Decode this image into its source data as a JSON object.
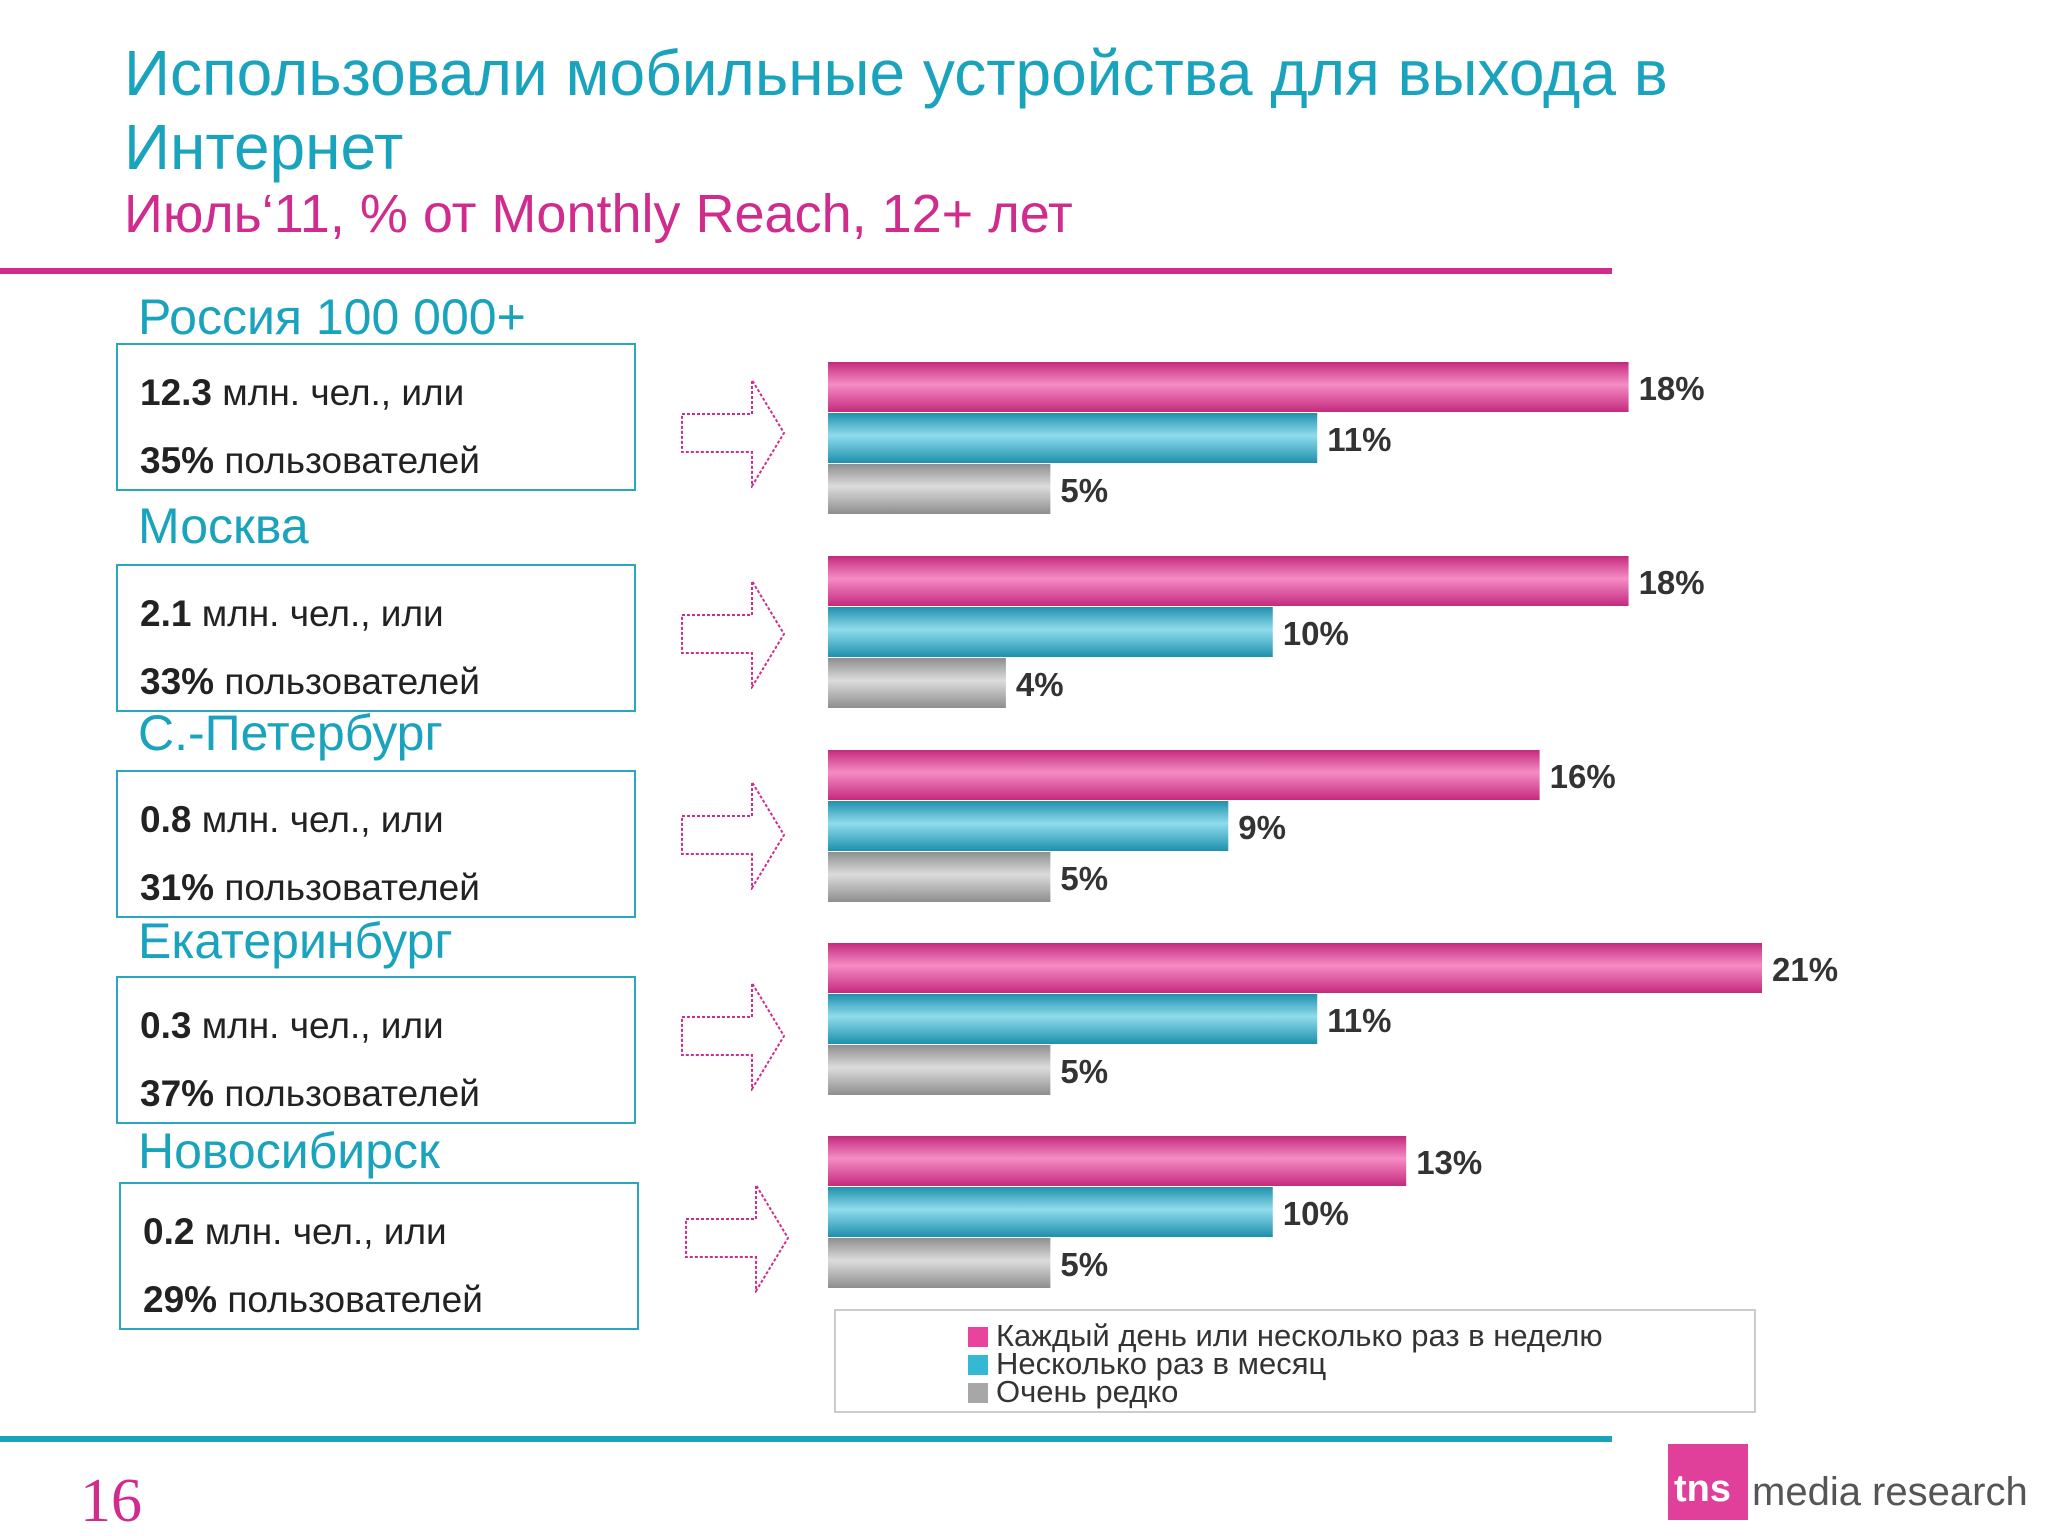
{
  "title": "Использовали мобильные устройства для выхода в Интернет",
  "subtitle": "Июль‘11, % от Monthly Reach, 12+ лет",
  "regions": [
    {
      "name": "Россия 100 000+",
      "count": "12.3",
      "count_suffix": "млн. чел., или",
      "share": "35%",
      "share_suffix": "пользователей"
    },
    {
      "name": "Москва",
      "count": "2.1",
      "count_suffix": "млн. чел., или",
      "share": "33%",
      "share_suffix": "пользователей"
    },
    {
      "name": "С.-Петербург",
      "count": "0.8",
      "count_suffix": "млн. чел., или",
      "share": "31%",
      "share_suffix": "пользователей"
    },
    {
      "name": "Екатеринбург",
      "count": "0.3",
      "count_suffix": "млн. чел., или",
      "share": "37%",
      "share_suffix": "пользователей"
    },
    {
      "name": "Новосибирск",
      "count": "0.2",
      "count_suffix": "млн. чел., или",
      "share": "29%",
      "share_suffix": "пользователей"
    }
  ],
  "chart_data": {
    "type": "bar",
    "orientation": "horizontal",
    "categories": [
      "Россия 100 000+",
      "Москва",
      "С.-Петербург",
      "Екатеринбург",
      "Новосибирск"
    ],
    "series": [
      {
        "name": "Каждый день или несколько раз в неделю",
        "values": [
          18,
          18,
          16,
          21,
          13
        ],
        "color": "#e8449e"
      },
      {
        "name": "Несколько раз в месяц",
        "values": [
          11,
          10,
          9,
          11,
          10
        ],
        "color": "#35b8d3"
      },
      {
        "name": "Очень редко",
        "values": [
          5,
          4,
          5,
          5,
          5
        ],
        "color": "#a7a7a7"
      }
    ],
    "data_labels": [
      [
        "18%",
        "11%",
        "5%"
      ],
      [
        "18%",
        "10%",
        "4%"
      ],
      [
        "16%",
        "9%",
        "5%"
      ],
      [
        "21%",
        "11%",
        "5%"
      ],
      [
        "13%",
        "10%",
        "5%"
      ]
    ],
    "xlim": [
      0,
      21
    ],
    "grid": false,
    "legend_position": "bottom"
  },
  "legend": [
    {
      "label": "Каждый день или несколько раз в неделю",
      "color": "#e8449e"
    },
    {
      "label": "Несколько раз в месяц",
      "color": "#35b8d3"
    },
    {
      "label": "Очень редко",
      "color": "#a7a7a7"
    }
  ],
  "page_number": "16",
  "logo": {
    "mark": "tns",
    "text": "media research",
    "color": "#e0409a"
  }
}
